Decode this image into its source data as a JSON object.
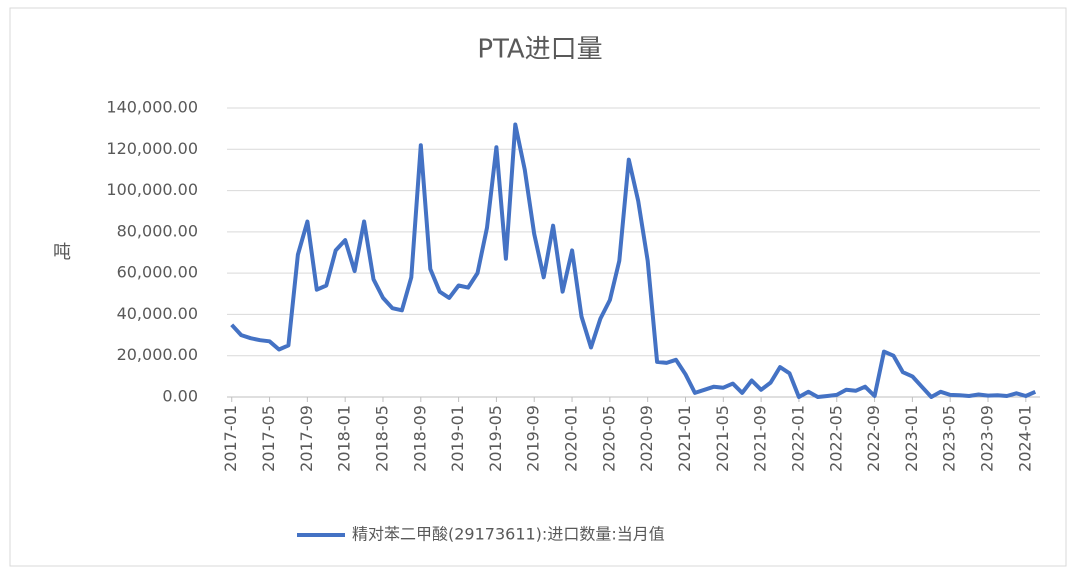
{
  "chart_data": {
    "type": "line",
    "title": "PTA进口量",
    "y_label": "吨",
    "categories": [
      "2017-01",
      null,
      null,
      null,
      "2017-05",
      null,
      null,
      null,
      "2017-09",
      null,
      null,
      null,
      "2018-01",
      null,
      null,
      null,
      "2018-05",
      null,
      null,
      null,
      "2018-09",
      null,
      null,
      null,
      "2019-01",
      null,
      null,
      null,
      "2019-05",
      null,
      null,
      null,
      "2019-09",
      null,
      null,
      null,
      "2020-01",
      null,
      null,
      null,
      "2020-05",
      null,
      null,
      null,
      "2020-09",
      null,
      null,
      null,
      "2021-01",
      null,
      null,
      null,
      "2021-05",
      null,
      null,
      null,
      "2021-09",
      null,
      null,
      null,
      "2022-01",
      null,
      null,
      null,
      "2022-05",
      null,
      null,
      null,
      "2022-09",
      null,
      null,
      null,
      "2023-01",
      null,
      null,
      null,
      "2023-05",
      null,
      null,
      null,
      "2023-09",
      null,
      null,
      null,
      "2024-01",
      null
    ],
    "series": [
      {
        "name": "精对苯二甲酸(29173611):进口数量:当月值",
        "color": "#4472c4",
        "values": [
          35000,
          30000,
          28500,
          27500,
          27000,
          23000,
          25000,
          69000,
          85000,
          52000,
          54000,
          71000,
          76000,
          61000,
          85000,
          57000,
          48000,
          43000,
          42000,
          58000,
          122000,
          62000,
          51000,
          48000,
          54000,
          53000,
          60000,
          82000,
          121000,
          67000,
          132000,
          110000,
          79000,
          58000,
          83000,
          51000,
          71000,
          39000,
          24000,
          38000,
          47000,
          66000,
          115000,
          95000,
          66000,
          17000,
          16500,
          18000,
          11000,
          2000,
          3500,
          5000,
          4500,
          6500,
          2000,
          8000,
          3500,
          7000,
          14500,
          11500,
          0,
          2500,
          0,
          500,
          1000,
          3500,
          3000,
          5000,
          500,
          22000,
          20000,
          12000,
          10000,
          5000,
          0,
          2500,
          1000,
          800,
          500,
          1200,
          700,
          800,
          500,
          1800,
          500,
          2500
        ]
      }
    ],
    "ylim": [
      0,
      140000
    ],
    "yticks": [
      {
        "value": 0,
        "label": "0.00"
      },
      {
        "value": 20000,
        "label": "20,000.00"
      },
      {
        "value": 40000,
        "label": "40,000.00"
      },
      {
        "value": 60000,
        "label": "60,000.00"
      },
      {
        "value": 80000,
        "label": "80,000.00"
      },
      {
        "value": 100000,
        "label": "100,000.00"
      },
      {
        "value": 120000,
        "label": "120,000.00"
      },
      {
        "value": 140000,
        "label": "140,000.00"
      }
    ],
    "grid": true
  }
}
